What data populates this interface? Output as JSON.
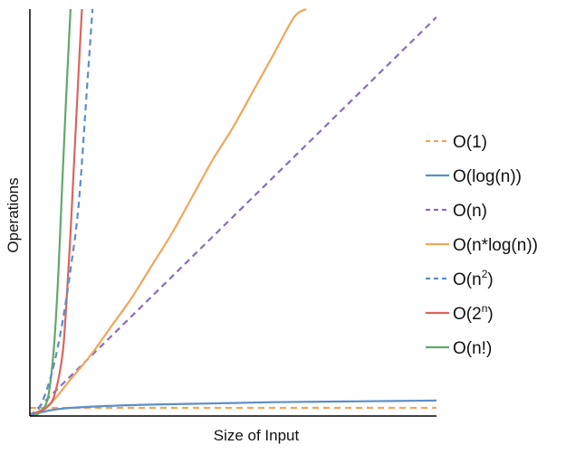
{
  "chart_data": {
    "type": "line",
    "title": "",
    "xlabel": "Size of Input",
    "ylabel": "Operations",
    "xlim": [
      0,
      100
    ],
    "ylim": [
      0,
      100
    ],
    "grid": false,
    "legend_position": "right",
    "series": [
      {
        "key": "o1",
        "name": "O(1)",
        "label_base": "O(1)",
        "label_sup": "",
        "label_tail": "",
        "color": "#f0a65a",
        "dashed": true,
        "x": [
          0,
          10,
          20,
          30,
          40,
          50,
          60,
          70,
          80,
          90,
          100
        ],
        "y": [
          2,
          2,
          2,
          2,
          2,
          2,
          2,
          2,
          2,
          2,
          2
        ]
      },
      {
        "key": "ologn",
        "name": "O(log(n))",
        "label_base": "O(log(n))",
        "label_sup": "",
        "label_tail": "",
        "color": "#5b8ec9",
        "dashed": false,
        "x": [
          0,
          5,
          10,
          20,
          30,
          40,
          50,
          60,
          70,
          80,
          90,
          100
        ],
        "y": [
          0.2,
          1.4,
          2.0,
          2.5,
          2.8,
          3.0,
          3.2,
          3.4,
          3.5,
          3.6,
          3.7,
          3.8
        ]
      },
      {
        "key": "on",
        "name": "O(n)",
        "label_base": "O(n)",
        "label_sup": "",
        "label_tail": "",
        "color": "#8a6bbf",
        "dashed": true,
        "x": [
          0,
          100
        ],
        "y": [
          0,
          98
        ]
      },
      {
        "key": "onlogn",
        "name": "O(n*log(n))",
        "label_base": "O(n*log(n))",
        "label_sup": "",
        "label_tail": "",
        "color": "#f0a65a",
        "dashed": false,
        "x": [
          0,
          5,
          10,
          15,
          20,
          25,
          30,
          35,
          40,
          45,
          50,
          55,
          60,
          65,
          68
        ],
        "y": [
          0,
          3,
          9,
          15,
          22,
          29,
          37,
          45,
          54,
          63,
          71,
          80,
          89,
          98,
          100
        ]
      },
      {
        "key": "on2",
        "name": "O(n²)",
        "label_base": "O(n",
        "label_sup": "2",
        "label_tail": ")",
        "color": "#5b8ec9",
        "dashed": true,
        "x": [
          0,
          2,
          4,
          6,
          8,
          10,
          12,
          14,
          15.4
        ],
        "y": [
          0,
          1.5,
          6,
          13,
          23,
          36,
          52,
          80,
          100
        ]
      },
      {
        "key": "o2n",
        "name": "O(2ⁿ)",
        "label_base": "O(2",
        "label_sup": "n",
        "label_tail": ")",
        "color": "#d9665f",
        "dashed": false,
        "x": [
          0,
          2,
          4,
          6,
          8,
          9,
          10,
          11,
          12,
          12.8
        ],
        "y": [
          0.5,
          1,
          2,
          5,
          15,
          28,
          45,
          65,
          85,
          100
        ]
      },
      {
        "key": "onfact",
        "name": "O(n!)",
        "label_base": "O(n!)",
        "label_sup": "",
        "label_tail": "",
        "color": "#5fa96b",
        "dashed": false,
        "x": [
          0,
          2,
          4,
          5,
          6,
          7,
          8,
          9,
          9.5,
          10
        ],
        "y": [
          0,
          0.5,
          3,
          8,
          18,
          35,
          58,
          80,
          90,
          100
        ]
      }
    ]
  }
}
